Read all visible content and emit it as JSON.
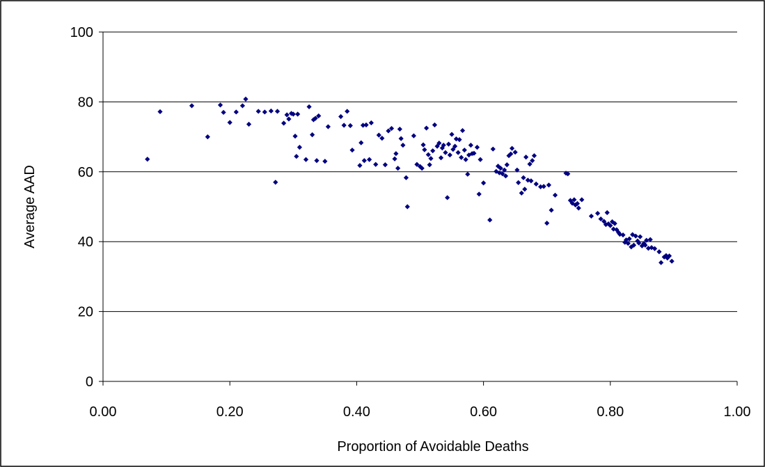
{
  "chart_data": {
    "type": "scatter",
    "title": "",
    "xlabel": "Proportion of Avoidable Deaths",
    "ylabel": "Average AAD",
    "xlim": [
      0,
      1
    ],
    "ylim": [
      0,
      100
    ],
    "x_ticks": [
      "0.00",
      "0.20",
      "0.40",
      "0.60",
      "0.80",
      "1.00"
    ],
    "y_ticks": [
      "0",
      "20",
      "40",
      "60",
      "80",
      "100"
    ],
    "grid": "horizontal",
    "legend": "none",
    "marker_color": "#000080",
    "marker": "diamond",
    "points": [
      [
        0.07,
        63.6
      ],
      [
        0.09,
        77.2
      ],
      [
        0.14,
        78.9
      ],
      [
        0.165,
        70.0
      ],
      [
        0.185,
        79.1
      ],
      [
        0.19,
        77.0
      ],
      [
        0.2,
        74.1
      ],
      [
        0.21,
        77.1
      ],
      [
        0.22,
        78.9
      ],
      [
        0.225,
        80.8
      ],
      [
        0.23,
        73.6
      ],
      [
        0.245,
        77.3
      ],
      [
        0.255,
        77.1
      ],
      [
        0.265,
        77.4
      ],
      [
        0.272,
        57.0
      ],
      [
        0.275,
        77.3
      ],
      [
        0.285,
        73.9
      ],
      [
        0.29,
        76.3
      ],
      [
        0.293,
        75.1
      ],
      [
        0.297,
        76.7
      ],
      [
        0.3,
        76.5
      ],
      [
        0.303,
        70.2
      ],
      [
        0.305,
        64.4
      ],
      [
        0.307,
        76.5
      ],
      [
        0.31,
        67.0
      ],
      [
        0.32,
        63.5
      ],
      [
        0.325,
        78.6
      ],
      [
        0.33,
        70.6
      ],
      [
        0.332,
        74.9
      ],
      [
        0.335,
        75.3
      ],
      [
        0.337,
        63.2
      ],
      [
        0.34,
        76.0
      ],
      [
        0.35,
        63.0
      ],
      [
        0.355,
        72.9
      ],
      [
        0.375,
        75.8
      ],
      [
        0.38,
        73.3
      ],
      [
        0.385,
        77.3
      ],
      [
        0.39,
        73.2
      ],
      [
        0.393,
        66.2
      ],
      [
        0.405,
        61.8
      ],
      [
        0.407,
        68.3
      ],
      [
        0.41,
        73.3
      ],
      [
        0.412,
        63.2
      ],
      [
        0.415,
        73.4
      ],
      [
        0.42,
        63.5
      ],
      [
        0.423,
        74.0
      ],
      [
        0.43,
        62.1
      ],
      [
        0.435,
        70.5
      ],
      [
        0.44,
        69.6
      ],
      [
        0.445,
        62.0
      ],
      [
        0.45,
        71.7
      ],
      [
        0.455,
        72.4
      ],
      [
        0.46,
        63.7
      ],
      [
        0.462,
        65.2
      ],
      [
        0.465,
        61.0
      ],
      [
        0.468,
        72.2
      ],
      [
        0.47,
        69.5
      ],
      [
        0.473,
        67.6
      ],
      [
        0.478,
        58.3
      ],
      [
        0.48,
        50.0
      ],
      [
        0.49,
        70.3
      ],
      [
        0.495,
        62.1
      ],
      [
        0.5,
        61.5
      ],
      [
        0.503,
        61.0
      ],
      [
        0.505,
        67.7
      ],
      [
        0.507,
        66.3
      ],
      [
        0.51,
        72.5
      ],
      [
        0.513,
        64.9
      ],
      [
        0.515,
        62.0
      ],
      [
        0.517,
        63.8
      ],
      [
        0.52,
        66.0
      ],
      [
        0.523,
        73.4
      ],
      [
        0.527,
        67.3
      ],
      [
        0.53,
        68.2
      ],
      [
        0.533,
        64.0
      ],
      [
        0.535,
        66.8
      ],
      [
        0.537,
        67.6
      ],
      [
        0.54,
        65.5
      ],
      [
        0.543,
        52.6
      ],
      [
        0.545,
        67.9
      ],
      [
        0.547,
        64.8
      ],
      [
        0.55,
        70.7
      ],
      [
        0.552,
        66.4
      ],
      [
        0.555,
        67.3
      ],
      [
        0.557,
        69.4
      ],
      [
        0.56,
        65.5
      ],
      [
        0.562,
        69.2
      ],
      [
        0.565,
        64.1
      ],
      [
        0.567,
        71.8
      ],
      [
        0.57,
        66.2
      ],
      [
        0.572,
        63.5
      ],
      [
        0.575,
        59.3
      ],
      [
        0.577,
        64.8
      ],
      [
        0.58,
        67.6
      ],
      [
        0.582,
        65.2
      ],
      [
        0.585,
        65.3
      ],
      [
        0.59,
        67.0
      ],
      [
        0.593,
        53.6
      ],
      [
        0.595,
        63.5
      ],
      [
        0.6,
        56.8
      ],
      [
        0.61,
        46.2
      ],
      [
        0.615,
        66.5
      ],
      [
        0.62,
        60.1
      ],
      [
        0.623,
        61.6
      ],
      [
        0.625,
        59.7
      ],
      [
        0.627,
        61.0
      ],
      [
        0.63,
        59.4
      ],
      [
        0.633,
        60.5
      ],
      [
        0.635,
        58.8
      ],
      [
        0.637,
        62.0
      ],
      [
        0.64,
        64.6
      ],
      [
        0.643,
        65.1
      ],
      [
        0.645,
        66.7
      ],
      [
        0.65,
        65.6
      ],
      [
        0.653,
        60.5
      ],
      [
        0.655,
        56.9
      ],
      [
        0.66,
        53.9
      ],
      [
        0.663,
        58.3
      ],
      [
        0.665,
        55.0
      ],
      [
        0.667,
        64.2
      ],
      [
        0.67,
        57.6
      ],
      [
        0.673,
        62.2
      ],
      [
        0.675,
        57.4
      ],
      [
        0.677,
        63.2
      ],
      [
        0.68,
        64.6
      ],
      [
        0.683,
        56.5
      ],
      [
        0.69,
        55.7
      ],
      [
        0.695,
        55.8
      ],
      [
        0.7,
        45.3
      ],
      [
        0.703,
        56.2
      ],
      [
        0.707,
        49.0
      ],
      [
        0.713,
        53.3
      ],
      [
        0.73,
        59.6
      ],
      [
        0.733,
        59.4
      ],
      [
        0.737,
        51.8
      ],
      [
        0.74,
        51.0
      ],
      [
        0.743,
        52.0
      ],
      [
        0.745,
        50.5
      ],
      [
        0.748,
        50.9
      ],
      [
        0.75,
        49.6
      ],
      [
        0.755,
        52.0
      ],
      [
        0.77,
        47.3
      ],
      [
        0.78,
        48.1
      ],
      [
        0.785,
        46.5
      ],
      [
        0.79,
        45.8
      ],
      [
        0.793,
        44.9
      ],
      [
        0.795,
        48.3
      ],
      [
        0.797,
        45.1
      ],
      [
        0.8,
        44.6
      ],
      [
        0.803,
        45.7
      ],
      [
        0.805,
        43.6
      ],
      [
        0.807,
        45.2
      ],
      [
        0.81,
        43.4
      ],
      [
        0.813,
        42.6
      ],
      [
        0.815,
        42.1
      ],
      [
        0.82,
        41.9
      ],
      [
        0.823,
        39.8
      ],
      [
        0.825,
        40.5
      ],
      [
        0.828,
        39.5
      ],
      [
        0.83,
        40.8
      ],
      [
        0.833,
        38.5
      ],
      [
        0.835,
        42.0
      ],
      [
        0.837,
        39.0
      ],
      [
        0.84,
        41.6
      ],
      [
        0.843,
        40.2
      ],
      [
        0.845,
        39.6
      ],
      [
        0.847,
        41.4
      ],
      [
        0.85,
        38.8
      ],
      [
        0.853,
        39.5
      ],
      [
        0.855,
        39.0
      ],
      [
        0.857,
        40.4
      ],
      [
        0.86,
        38.1
      ],
      [
        0.863,
        40.6
      ],
      [
        0.865,
        38.3
      ],
      [
        0.87,
        38.0
      ],
      [
        0.877,
        37.1
      ],
      [
        0.88,
        34.0
      ],
      [
        0.885,
        35.6
      ],
      [
        0.888,
        36.0
      ],
      [
        0.89,
        35.3
      ],
      [
        0.893,
        35.9
      ],
      [
        0.897,
        34.4
      ]
    ]
  }
}
